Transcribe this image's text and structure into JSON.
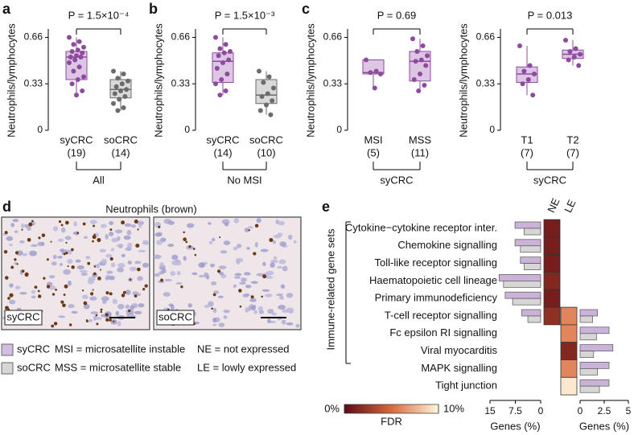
{
  "panel_letters": [
    "a",
    "b",
    "c",
    "d",
    "e"
  ],
  "chart_data": [
    {
      "type": "box",
      "y_label": "Neutrophils/lymphocytes",
      "ylim": [
        0,
        0.72
      ],
      "yticks": [
        0,
        0.33,
        0.66
      ],
      "p_value": "P = 1.5×10⁻⁴",
      "group_label": "All",
      "group_color": "#000000",
      "series": [
        {
          "name": "syCRC",
          "n_label": "(19)",
          "color": "#8e4a9e",
          "fill": "#dcc6e4",
          "whisker_low": 0.25,
          "q1": 0.36,
          "median": 0.52,
          "q3": 0.56,
          "whisker_high": 0.66,
          "points": [
            0.66,
            0.63,
            0.61,
            0.59,
            0.57,
            0.56,
            0.55,
            0.53,
            0.52,
            0.52,
            0.5,
            0.48,
            0.45,
            0.42,
            0.38,
            0.36,
            0.33,
            0.28,
            0.25
          ]
        },
        {
          "name": "soCRC",
          "n_label": "(14)",
          "color": "#6b6b6b",
          "fill": "#d9d9d9",
          "whisker_low": 0.14,
          "q1": 0.23,
          "median": 0.29,
          "q3": 0.36,
          "whisker_high": 0.42,
          "points": [
            0.42,
            0.4,
            0.37,
            0.35,
            0.33,
            0.31,
            0.29,
            0.28,
            0.26,
            0.24,
            0.22,
            0.19,
            0.16,
            0.14
          ]
        }
      ]
    },
    {
      "type": "box",
      "y_label": "Neutrophils/lymphocytes",
      "ylim": [
        0,
        0.72
      ],
      "yticks": [
        0,
        0.33,
        0.66
      ],
      "p_value": "P = 1.5×10⁻³",
      "group_label": "No MSI",
      "group_color": "#000000",
      "series": [
        {
          "name": "syCRC",
          "n_label": "(14)",
          "color": "#8e4a9e",
          "fill": "#dcc6e4",
          "whisker_low": 0.25,
          "q1": 0.34,
          "median": 0.49,
          "q3": 0.55,
          "whisker_high": 0.66,
          "points": [
            0.66,
            0.61,
            0.58,
            0.56,
            0.55,
            0.53,
            0.5,
            0.48,
            0.44,
            0.4,
            0.36,
            0.33,
            0.28,
            0.25
          ]
        },
        {
          "name": "soCRC",
          "n_label": "(10)",
          "color": "#6b6b6b",
          "fill": "#d9d9d9",
          "whisker_low": 0.11,
          "q1": 0.19,
          "median": 0.25,
          "q3": 0.36,
          "whisker_high": 0.42,
          "points": [
            0.42,
            0.38,
            0.34,
            0.3,
            0.26,
            0.24,
            0.21,
            0.18,
            0.14,
            0.11
          ]
        }
      ]
    },
    {
      "type": "box",
      "y_label": "Neutrophils/lymphocytes",
      "ylim": [
        0,
        0.72
      ],
      "yticks": [
        0,
        0.33,
        0.66
      ],
      "p_value": "P = 0.69",
      "group_label": "syCRC",
      "group_color": "#8e4a9e",
      "series": [
        {
          "name": "MSI",
          "n_label": "(5)",
          "color": "#8e4a9e",
          "fill": "#dcc6e4",
          "whisker_low": 0.3,
          "q1": 0.4,
          "median": 0.41,
          "q3": 0.5,
          "whisker_high": 0.5,
          "points": [
            0.5,
            0.42,
            0.41,
            0.4,
            0.3
          ]
        },
        {
          "name": "MSS",
          "n_label": "(11)",
          "color": "#8e4a9e",
          "fill": "#dcc6e4",
          "whisker_low": 0.28,
          "q1": 0.35,
          "median": 0.49,
          "q3": 0.56,
          "whisker_high": 0.65,
          "points": [
            0.65,
            0.6,
            0.56,
            0.53,
            0.5,
            0.49,
            0.46,
            0.4,
            0.36,
            0.32,
            0.28
          ]
        }
      ]
    },
    {
      "type": "box",
      "y_label": "Neutrophils/lymphocytes",
      "ylim": [
        0,
        0.72
      ],
      "yticks": [
        0,
        0.33,
        0.66
      ],
      "p_value": "P = 0.013",
      "group_label": "syCRC",
      "group_color": "#8e4a9e",
      "series": [
        {
          "name": "T1",
          "n_label": "(7)",
          "color": "#8e4a9e",
          "fill": "#dcc6e4",
          "whisker_low": 0.25,
          "q1": 0.34,
          "median": 0.4,
          "q3": 0.45,
          "whisker_high": 0.6,
          "points": [
            0.6,
            0.46,
            0.42,
            0.4,
            0.36,
            0.33,
            0.25
          ]
        },
        {
          "name": "T2",
          "n_label": "(7)",
          "color": "#8e4a9e",
          "fill": "#dcc6e4",
          "whisker_low": 0.46,
          "q1": 0.51,
          "median": 0.54,
          "q3": 0.57,
          "whisker_high": 0.64,
          "points": [
            0.64,
            0.58,
            0.56,
            0.54,
            0.52,
            0.5,
            0.46
          ]
        }
      ]
    },
    {
      "type": "heatbar",
      "y_label": "Immune-related gene sets",
      "categories": [
        "Cytokine−cytokine receptor inter.",
        "Chemokine signalling",
        "Toll-like receptor signalling",
        "Haematopoietic cell lineage",
        "Primary immunodeficiency",
        "T-cell receptor signalling",
        "Fc epsilon RI signalling",
        "Viral myocarditis",
        "MAPK signalling",
        "Tight junction"
      ],
      "heat_columns": [
        "NE",
        "LE"
      ],
      "fdr": [
        [
          1,
          1,
          1,
          1.5,
          1,
          2,
          null,
          null,
          null,
          null
        ],
        [
          null,
          null,
          null,
          null,
          null,
          6,
          6,
          1.5,
          6,
          9.5
        ]
      ],
      "fdr_lim": [
        0,
        10
      ],
      "fdr_ticks": [
        {
          "value": 0,
          "label": "0%"
        },
        {
          "value": 10,
          "label": "10%"
        }
      ],
      "fdr_label": "FDR",
      "fdr_colors": [
        "#5e0a16",
        "#d8693c",
        "#fff6de"
      ],
      "bar_groups": [
        {
          "xlim": [
            0,
            15
          ],
          "reversed": true,
          "xticks": [
            15,
            7.5,
            0
          ],
          "xlabel": "Genes (%)",
          "series": [
            {
              "color": "#cbb2d8",
              "values": [
                7.6,
                7.6,
                6.0,
                12.3,
                10.5,
                5.6,
                null,
                null,
                null,
                null
              ]
            },
            {
              "color": "#d6d6d6",
              "values": [
                4.9,
                6.0,
                4.9,
                11.0,
                8.3,
                3.8,
                null,
                null,
                null,
                null
              ]
            }
          ]
        },
        {
          "xlim": [
            0,
            5
          ],
          "reversed": false,
          "xticks": [
            0,
            2.5,
            5
          ],
          "xlabel": "Genes (%)",
          "series": [
            {
              "color": "#cbb2d8",
              "values": [
                null,
                null,
                null,
                null,
                null,
                1.8,
                3.0,
                3.4,
                3.0,
                3.0
              ]
            },
            {
              "color": "#d6d6d6",
              "values": [
                null,
                null,
                null,
                null,
                null,
                1.3,
                1.7,
                1.4,
                1.8,
                2.0
              ]
            }
          ]
        }
      ]
    }
  ],
  "image_panel": {
    "title": "Neutrophils (brown)",
    "images": [
      {
        "label": "syCRC"
      },
      {
        "label": "soCRC"
      }
    ]
  },
  "legend": {
    "items": [
      {
        "label": "syCRC",
        "color": "#8e4a9e",
        "swatch": "#d4bde0"
      },
      {
        "label": "soCRC",
        "color": "#6b6b6b",
        "swatch": "#d6d6d6"
      }
    ],
    "notes": [
      [
        "MSI = microsatellite instable",
        "NE = not expressed"
      ],
      [
        "MSS = microsatellite stable",
        "LE = lowly expressed"
      ]
    ]
  }
}
